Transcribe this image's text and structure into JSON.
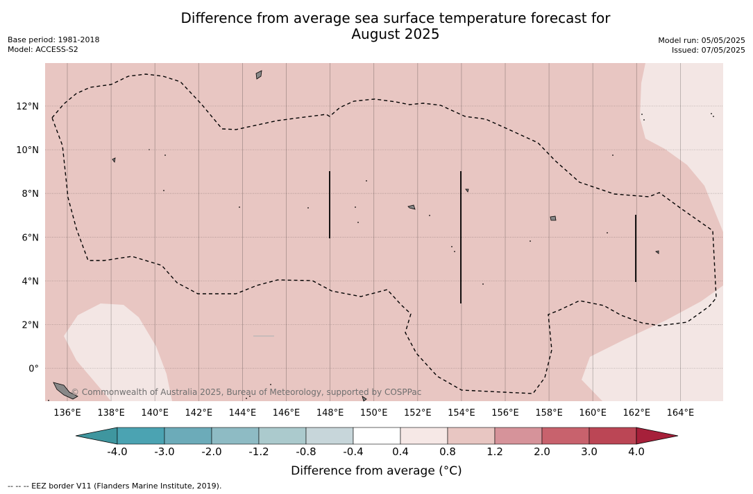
{
  "title_line1": "Difference from average sea surface temperature forecast for",
  "title_line2": "August 2025",
  "base_period": "Base period: 1981-2018",
  "model": "Model: ACCESS-S2",
  "model_run": "Model run: 05/05/2025",
  "issued": "Issued: 07/05/2025",
  "lon_labels": [
    "136°E",
    "138°E",
    "140°E",
    "142°E",
    "144°E",
    "146°E",
    "148°E",
    "150°E",
    "152°E",
    "154°E",
    "156°E",
    "158°E",
    "160°E",
    "162°E",
    "164°E"
  ],
  "lat_labels": [
    "12°N",
    "10°N",
    "8°N",
    "6°N",
    "4°N",
    "2°N",
    "0°"
  ],
  "watermark": "© Commonwealth of Australia 2025, Bureau of Meteorology, supported by COSPPac",
  "colorbar": {
    "labels": [
      "-4.0",
      "-3.0",
      "-2.0",
      "-1.2",
      "-0.8",
      "-0.4",
      "0.4",
      "0.8",
      "1.2",
      "2.0",
      "3.0",
      "4.0"
    ],
    "colors": [
      "#3f969f",
      "#4ba3b2",
      "#6cabb9",
      "#8ebbc4",
      "#abcacd",
      "#c7d6da",
      "#ffffff",
      "#f6e8e6",
      "#e8c6c2",
      "#d6939a",
      "#c8626d",
      "#bb4655",
      "#a6203a"
    ],
    "title": "Difference from average (°C)"
  },
  "map_colors": {
    "anomaly_04_08": "#f3e6e4",
    "anomaly_08_12": "#e8c6c2"
  },
  "footnote": "-- -- -- EEZ border V11 (Flanders Marine Institute, 2019)."
}
